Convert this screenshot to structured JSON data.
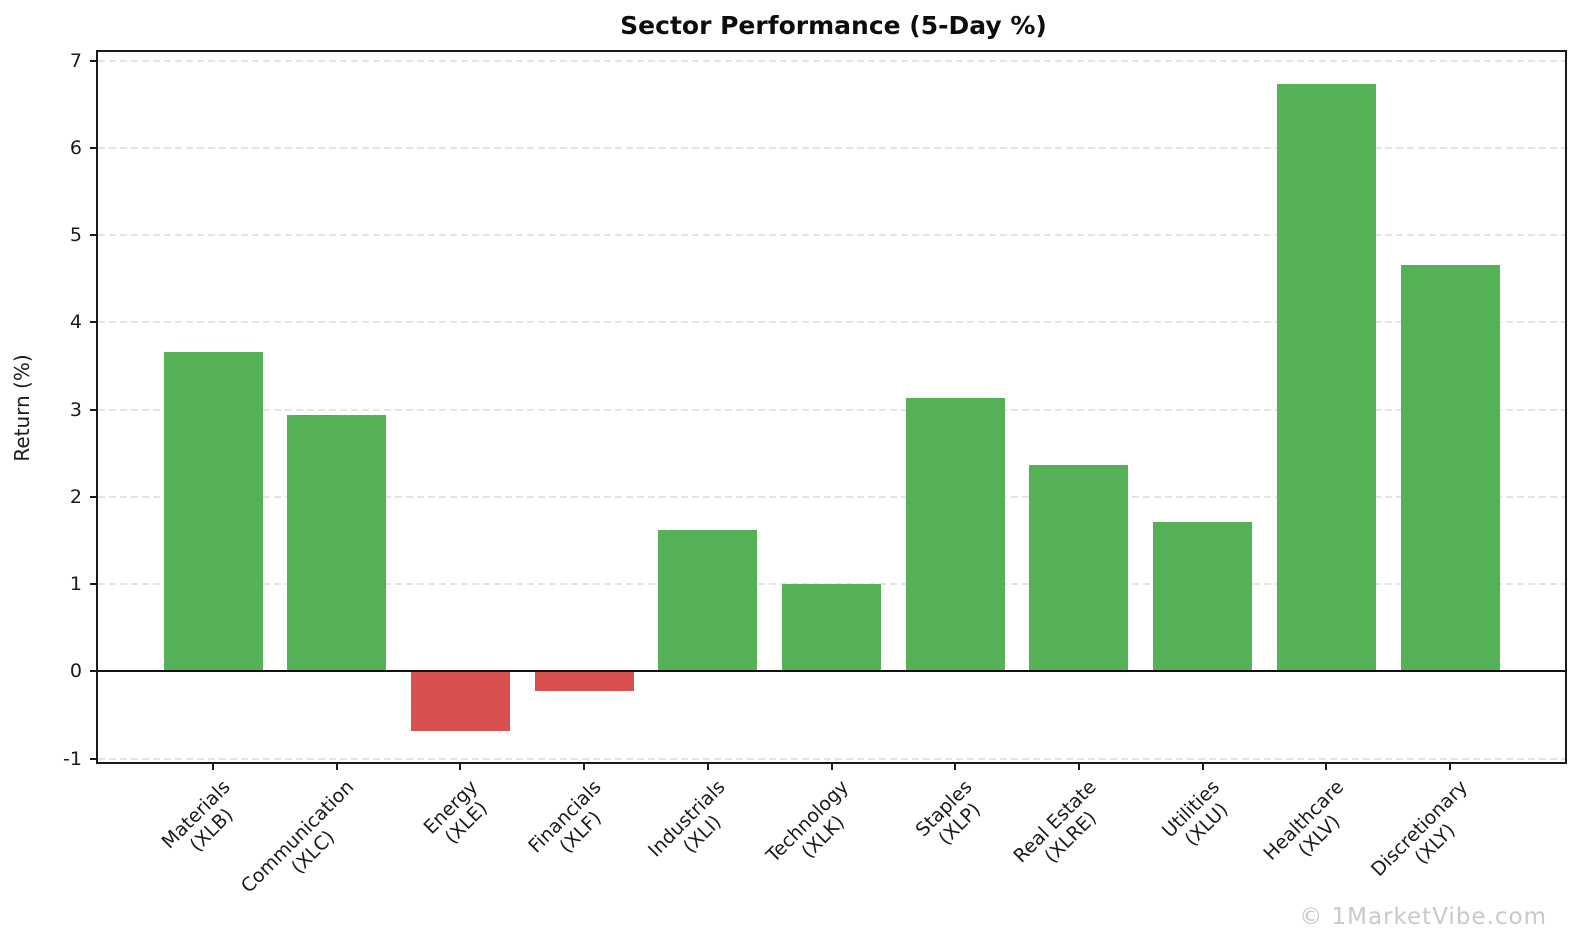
{
  "watermark": "© 1MarketVibe.com",
  "colors": {
    "positive_bar": "#55b156",
    "negative_bar": "#d9514e",
    "grid": "#e4e4e4",
    "axis": "#1a1a1a",
    "title_text": "#0d0d0d",
    "watermark_text": "#c9c9c9",
    "background": "#ffffff"
  },
  "chart_data": {
    "type": "bar",
    "title": "Sector Performance (5-Day %)",
    "xlabel": "",
    "ylabel": "Return (%)",
    "categories": [
      {
        "name": "Materials",
        "ticker": "(XLB)"
      },
      {
        "name": "Communication",
        "ticker": "(XLC)"
      },
      {
        "name": "Energy",
        "ticker": "(XLE)"
      },
      {
        "name": "Financials",
        "ticker": "(XLF)"
      },
      {
        "name": "Industrials",
        "ticker": "(XLI)"
      },
      {
        "name": "Technology",
        "ticker": "(XLK)"
      },
      {
        "name": "Staples",
        "ticker": "(XLP)"
      },
      {
        "name": "Real Estate",
        "ticker": "(XLRE)"
      },
      {
        "name": "Utilities",
        "ticker": "(XLU)"
      },
      {
        "name": "Healthcare",
        "ticker": "(XLV)"
      },
      {
        "name": "Discretionary",
        "ticker": "(XLY)"
      }
    ],
    "values": [
      3.66,
      2.94,
      -0.68,
      -0.23,
      1.62,
      1.0,
      3.13,
      2.36,
      1.71,
      6.73,
      4.66
    ],
    "yticks": [
      -1,
      0,
      1,
      2,
      3,
      4,
      5,
      6,
      7
    ],
    "ylim": [
      -1.04,
      7.1
    ],
    "grid": "horizontal dashed",
    "zero_line": true,
    "legend": "none",
    "color_rule": "green if value >= 0, red if value < 0"
  }
}
